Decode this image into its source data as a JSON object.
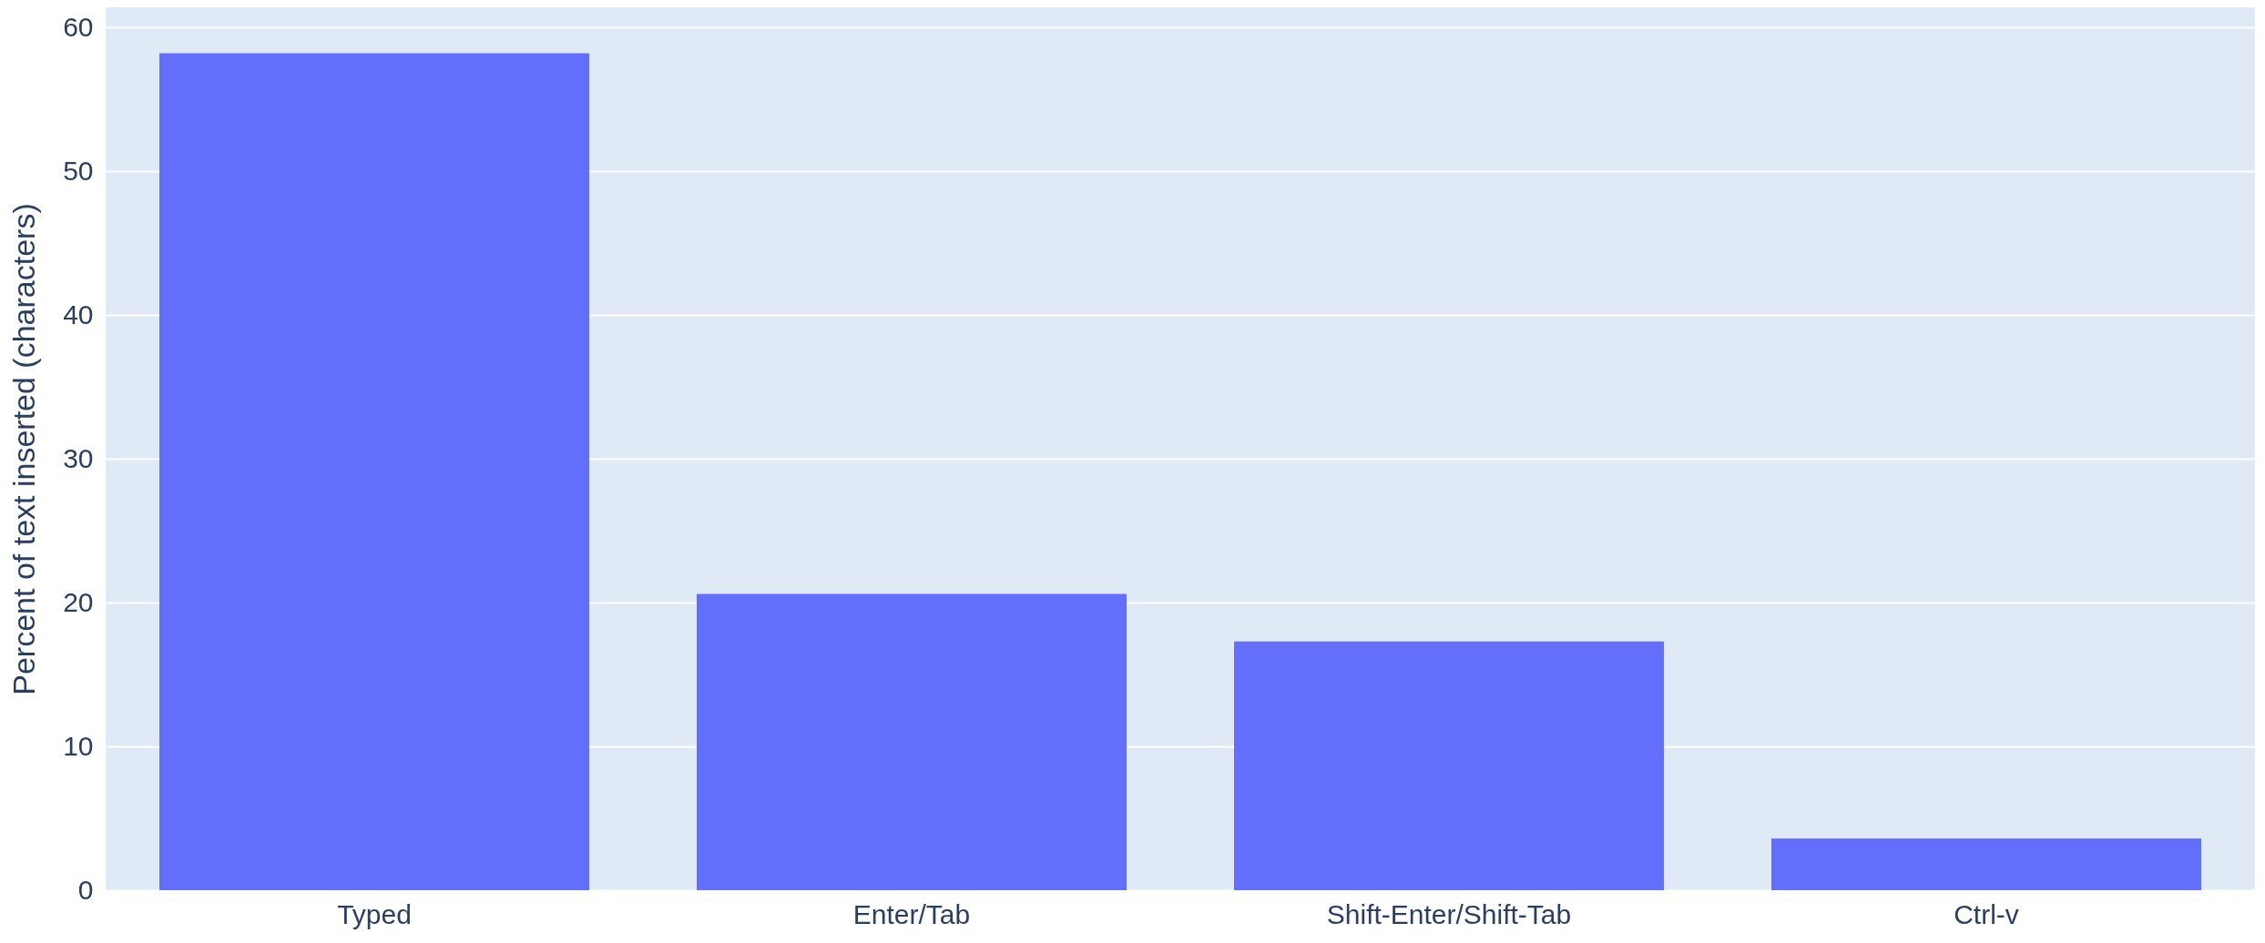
{
  "chart_data": {
    "type": "bar",
    "ylabel": "Percent of text inserted (characters)",
    "categories": [
      "Typed",
      "Enter/Tab",
      "Shift-Enter/Shift-Tab",
      "Ctrl-v"
    ],
    "values": [
      58.2,
      20.6,
      17.3,
      3.6
    ],
    "color": "#636efa",
    "ylim": [
      0,
      61.4
    ],
    "yticks": [
      0,
      10,
      20,
      30,
      40,
      50,
      60
    ],
    "grid": "y"
  }
}
